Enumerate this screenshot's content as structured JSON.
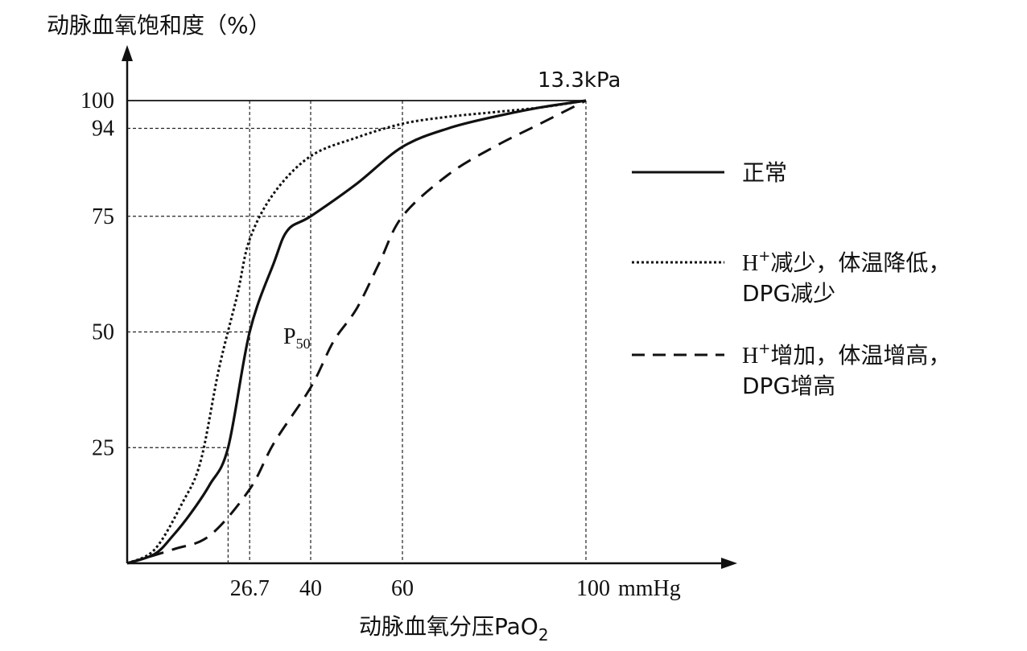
{
  "chart_data": {
    "type": "line",
    "title": "",
    "ylabel": "动脉血氧饱和度（%）",
    "xlabel": "动脉血氧分压PaO",
    "xlabel_sub": "2",
    "x_unit": "mmHg",
    "xlim": [
      0,
      100
    ],
    "ylim": [
      0,
      100
    ],
    "x_ticks": [
      "26.7",
      "40",
      "60",
      "100"
    ],
    "y_ticks": [
      "25",
      "50",
      "75",
      "94",
      "100"
    ],
    "top_annotation": "13.3kPa",
    "p50_label": "P",
    "p50_label_sub": "50",
    "grid": "dashed reference lines at tick values",
    "legend_position": "right",
    "series": [
      {
        "name": "正常",
        "style": "solid",
        "color": "#111111",
        "points": [
          [
            0,
            0
          ],
          [
            6,
            2
          ],
          [
            10,
            6
          ],
          [
            14,
            11
          ],
          [
            18,
            17
          ],
          [
            22,
            25
          ],
          [
            26.7,
            50
          ],
          [
            32,
            65
          ],
          [
            35,
            72
          ],
          [
            40,
            75
          ],
          [
            50,
            82
          ],
          [
            60,
            90
          ],
          [
            70,
            94
          ],
          [
            80,
            96.5
          ],
          [
            90,
            98.5
          ],
          [
            100,
            100
          ]
        ]
      },
      {
        "name": "H⁺减少，体温降低，DPG减少",
        "name_lines": [
          "减少，体温降低，",
          "DPG减少"
        ],
        "style": "dotted",
        "color": "#111111",
        "points": [
          [
            0,
            0
          ],
          [
            6,
            3
          ],
          [
            12,
            13
          ],
          [
            16,
            22
          ],
          [
            20,
            42
          ],
          [
            24,
            58
          ],
          [
            26.7,
            70
          ],
          [
            32,
            80
          ],
          [
            40,
            88
          ],
          [
            50,
            92
          ],
          [
            60,
            95
          ],
          [
            70,
            96.5
          ],
          [
            80,
            97.5
          ],
          [
            90,
            98.5
          ],
          [
            100,
            100
          ]
        ]
      },
      {
        "name": "H⁺增加，体温增高，DPG增高",
        "name_lines": [
          "增加，体温增高，",
          "DPG增高"
        ],
        "style": "dashed",
        "color": "#111111",
        "points": [
          [
            0,
            0
          ],
          [
            10,
            3
          ],
          [
            18,
            6
          ],
          [
            26.7,
            16
          ],
          [
            32,
            26
          ],
          [
            40,
            38
          ],
          [
            45,
            48
          ],
          [
            50,
            55
          ],
          [
            55,
            65
          ],
          [
            60,
            75
          ],
          [
            70,
            84
          ],
          [
            80,
            90
          ],
          [
            90,
            95
          ],
          [
            100,
            100
          ]
        ]
      }
    ]
  }
}
